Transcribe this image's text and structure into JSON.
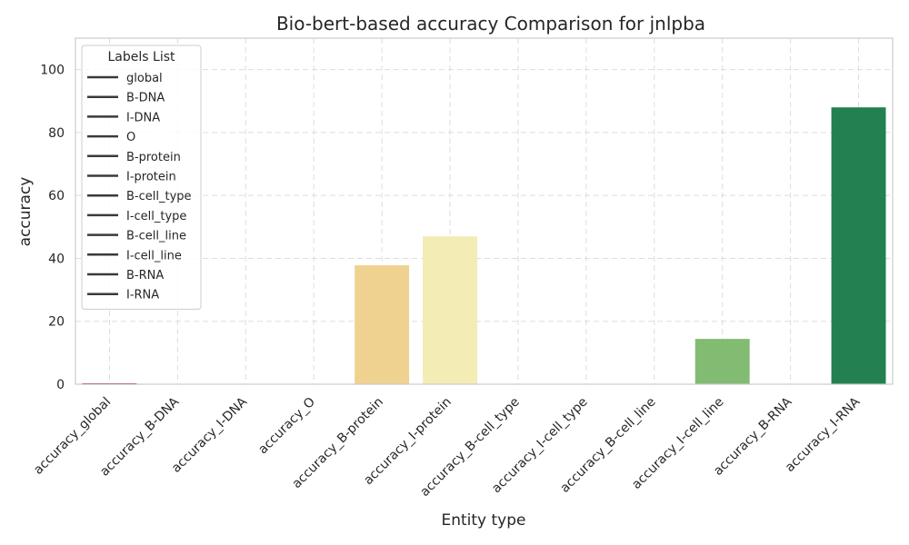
{
  "chart_data": {
    "type": "bar",
    "title": "Bio-bert-based accuracy Comparison for jnlpba",
    "xlabel": "Entity type",
    "ylabel": "accuracy",
    "ylim": [
      0,
      110
    ],
    "yticks": [
      0,
      20,
      40,
      60,
      80,
      100
    ],
    "grid": true,
    "categories": [
      "accuracy_global",
      "accuracy_B-DNA",
      "accuracy_I-DNA",
      "accuracy_O",
      "accuracy_B-protein",
      "accuracy_I-protein",
      "accuracy_B-cell_type",
      "accuracy_I-cell_type",
      "accuracy_B-cell_line",
      "accuracy_I-cell_line",
      "accuracy_B-RNA",
      "accuracy_I-RNA"
    ],
    "values": [
      0.3,
      0,
      0,
      0,
      37.8,
      47.0,
      0,
      0,
      0,
      14.4,
      0,
      88.0
    ],
    "colors": [
      "#a50026",
      "#d73027",
      "#f46d43",
      "#fdae61",
      "#f0d290",
      "#f3ecb4",
      "#e6f4a0",
      "#c7e58c",
      "#a6d96a",
      "#82bb72",
      "#4ea860",
      "#238050"
    ],
    "legend": {
      "title": "Labels List",
      "placement": "top-left",
      "entries": [
        "global",
        "B-DNA",
        "I-DNA",
        "O",
        "B-protein",
        "I-protein",
        "B-cell_type",
        "I-cell_type",
        "B-cell_line",
        "I-cell_line",
        "B-RNA",
        "I-RNA"
      ]
    }
  }
}
